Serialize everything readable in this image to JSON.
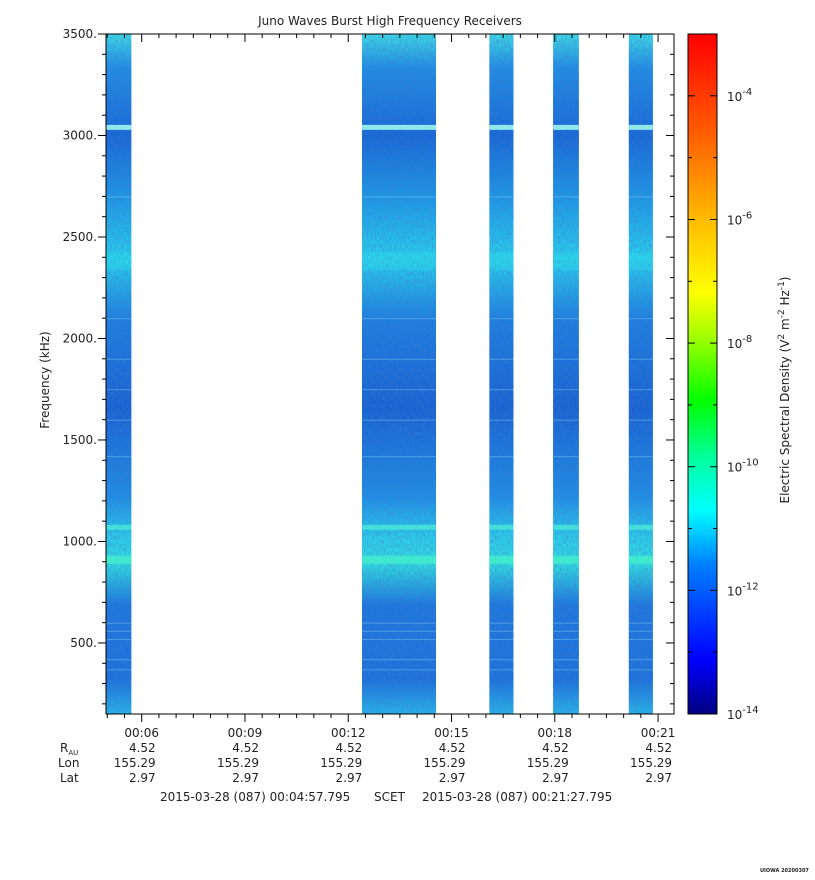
{
  "chart_data": {
    "type": "heatmap",
    "title": "Juno Waves Burst High Frequency Receivers",
    "ylabel": "Frequency (kHz)",
    "ylim": [
      150,
      3500
    ],
    "y_ticks": [
      500,
      1000,
      1500,
      2000,
      2500,
      3000,
      3500
    ],
    "y_tick_labels": [
      "500.",
      "1000.",
      "1500.",
      "2000.",
      "2500.",
      "3000.",
      "3500."
    ],
    "x_range_minutes": [
      4.963,
      21.463
    ],
    "x_ticks": [
      6,
      9,
      12,
      15,
      18,
      21
    ],
    "x_tick_labels": [
      "00:06",
      "00:09",
      "00:12",
      "00:15",
      "00:18",
      "00:21"
    ],
    "data_blocks_minutes": [
      [
        4.963,
        5.7
      ],
      [
        12.4,
        14.55
      ],
      [
        16.1,
        16.8
      ],
      [
        17.95,
        18.7
      ],
      [
        20.15,
        20.85
      ]
    ],
    "colorbar": {
      "label": "Electric Spectral Density (V² m⁻² Hz⁻¹)",
      "label_main": "Electric Spectral Density (V",
      "label_parts": [
        "2",
        " m",
        "-2",
        " Hz",
        "-1",
        ")"
      ],
      "scale": "log",
      "range_exponent": [
        -14,
        -3
      ],
      "tick_exponents": [
        -14,
        -12,
        -10,
        -8,
        -6,
        -4
      ],
      "tick_labels": [
        "10",
        "10",
        "10",
        "10",
        "10",
        "10"
      ],
      "tick_sups": [
        "-14",
        "-12",
        "-10",
        "-8",
        "-6",
        "-4"
      ]
    },
    "ephemeris_labels": {
      "r": "R",
      "r_sub": "AU",
      "lon": "Lon",
      "lat": "Lat"
    },
    "ephemeris": {
      "r": [
        "4.52",
        "4.52",
        "4.52",
        "4.52",
        "4.52",
        "4.52"
      ],
      "lon": [
        "155.29",
        "155.29",
        "155.29",
        "155.29",
        "155.29",
        "155.29"
      ],
      "lat": [
        "2.97",
        "2.97",
        "2.97",
        "2.97",
        "2.97",
        "2.97"
      ]
    },
    "time_range": {
      "start": "2015-03-28 (087) 00:04:57.795",
      "label": "SCET",
      "end": "2015-03-28 (087) 00:21:27.795"
    },
    "stamp": "UIOWA 20200307"
  }
}
